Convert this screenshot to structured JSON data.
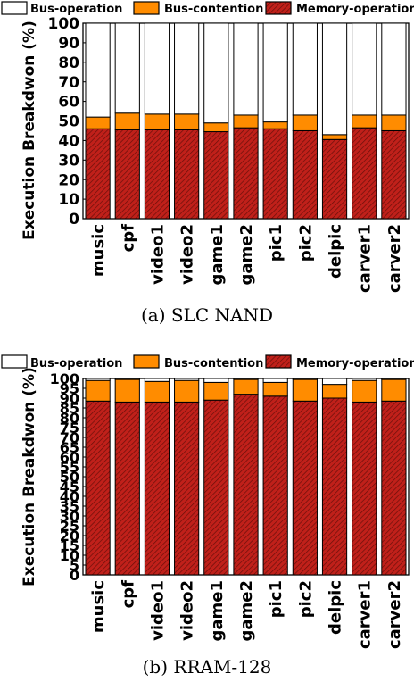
{
  "legend": {
    "bus_operation": "Bus-operation",
    "bus_contention": "Bus-contention",
    "memory_operation": "Memory-operation"
  },
  "colors": {
    "bus_operation": "#ffffff",
    "bus_contention": "#ff8c00",
    "memory_operation": "#c0201a",
    "hatch": "#6a0f0a"
  },
  "chart_data": [
    {
      "type": "bar",
      "stacked": true,
      "caption": "(a) SLC NAND",
      "ylabel": "Execution Breakdwon (%)",
      "ylim": [
        0,
        100
      ],
      "yticks": [
        0,
        10,
        20,
        30,
        40,
        50,
        60,
        70,
        80,
        90,
        100
      ],
      "legend_position": "top",
      "categories": [
        "music",
        "cpf",
        "video1",
        "video2",
        "game1",
        "game2",
        "pic1",
        "pic2",
        "delpic",
        "carver1",
        "carver2"
      ],
      "series": [
        {
          "name": "Memory-operation",
          "values": [
            46,
            45.5,
            45.5,
            45.5,
            44.5,
            46.5,
            46,
            45,
            40.5,
            46.5,
            45
          ]
        },
        {
          "name": "Bus-contention",
          "values": [
            6,
            8.5,
            8,
            8,
            4.5,
            6.5,
            3.5,
            8,
            2.5,
            6.5,
            8
          ]
        },
        {
          "name": "Bus-operation",
          "values": [
            48,
            46,
            46.5,
            46.5,
            51,
            47,
            50.5,
            47,
            57,
            47,
            47
          ]
        }
      ]
    },
    {
      "type": "bar",
      "stacked": true,
      "caption": "(b) RRAM-128",
      "ylabel": "Execution Breakdwon (%)",
      "ylim": [
        0,
        100
      ],
      "yticks": [
        0,
        5,
        10,
        15,
        20,
        25,
        30,
        35,
        40,
        45,
        50,
        55,
        60,
        65,
        70,
        75,
        80,
        85,
        90,
        95,
        100
      ],
      "legend_position": "top",
      "categories": [
        "music",
        "cpf",
        "video1",
        "video2",
        "game1",
        "game2",
        "pic1",
        "pic2",
        "delpic",
        "carver1",
        "carver2"
      ],
      "series": [
        {
          "name": "Memory-operation",
          "values": [
            88.5,
            88,
            88,
            88,
            89,
            92,
            91,
            88.5,
            90,
            88,
            88.5
          ]
        },
        {
          "name": "Bus-contention",
          "values": [
            10.5,
            11.5,
            10.5,
            11,
            9,
            7.5,
            7,
            11,
            7,
            11,
            11
          ]
        },
        {
          "name": "Bus-operation",
          "values": [
            1,
            0.5,
            1.5,
            1,
            2,
            0.5,
            2,
            0.5,
            3,
            1,
            0.5
          ]
        }
      ]
    }
  ]
}
